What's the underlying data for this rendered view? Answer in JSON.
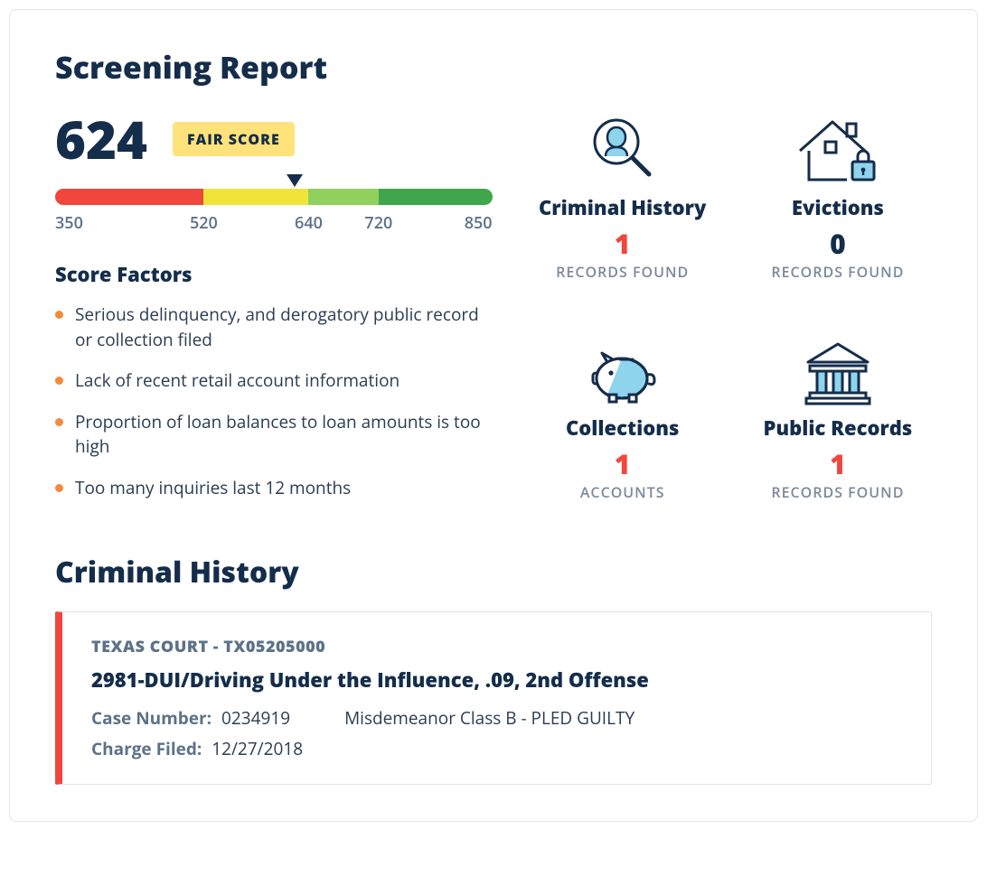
{
  "page_title": "Screening Report",
  "score": {
    "value": "624",
    "badge": "FAIR SCORE",
    "badge_bg": "#ffe27a",
    "badge_fg": "#142d4b",
    "min": 350,
    "max": 850,
    "marker_at": 624,
    "segments": [
      {
        "from": 350,
        "to": 520,
        "color": "#f0463d"
      },
      {
        "from": 520,
        "to": 640,
        "color": "#f0e43a"
      },
      {
        "from": 640,
        "to": 720,
        "color": "#8fd15c"
      },
      {
        "from": 720,
        "to": 850,
        "color": "#3fa64b"
      }
    ],
    "ticks": [
      "350",
      "520",
      "640",
      "720",
      "850"
    ]
  },
  "factors_title": "Score Factors",
  "factors": [
    "Serious delinquency, and derogatory public record or collection filed",
    "Lack of recent retail account information",
    "Proportion of loan balances to loan amounts is too high",
    "Too many inquiries last 12 months"
  ],
  "bullet_color": "#f58a3c",
  "tiles": {
    "criminal_history": {
      "title": "Criminal History",
      "count": "1",
      "sub": "RECORDS FOUND",
      "count_color": "#f0463d",
      "icon_color": "#142d4b",
      "icon_accent": "#8fd4ed"
    },
    "evictions": {
      "title": "Evictions",
      "count": "0",
      "sub": "RECORDS FOUND",
      "count_color": "#142d4b",
      "icon_color": "#142d4b",
      "icon_accent": "#8fd4ed"
    },
    "collections": {
      "title": "Collections",
      "count": "1",
      "sub": "ACCOUNTS",
      "count_color": "#f0463d",
      "icon_color": "#142d4b",
      "icon_accent": "#8fd4ed"
    },
    "public_records": {
      "title": "Public Records",
      "count": "1",
      "sub": "RECORDS FOUND",
      "count_color": "#f0463d",
      "icon_color": "#142d4b",
      "icon_accent": "#8fd4ed"
    }
  },
  "criminal_section_title": "Criminal History",
  "criminal_record": {
    "accent_color": "#f0463d",
    "court": "TEXAS COURT - TX05205000",
    "offense": "2981-DUI/Driving Under the Influence, .09, 2nd Offense",
    "case_number_label": "Case Number:",
    "case_number": "0234919",
    "classification": "Misdemeanor Class B - PLED GUILTY",
    "charge_filed_label": "Charge Filed:",
    "charge_filed": "12/27/2018"
  },
  "colors": {
    "heading": "#142d4b",
    "body": "#2a3d52",
    "muted": "#5b7289",
    "border": "#e1e4e8"
  }
}
